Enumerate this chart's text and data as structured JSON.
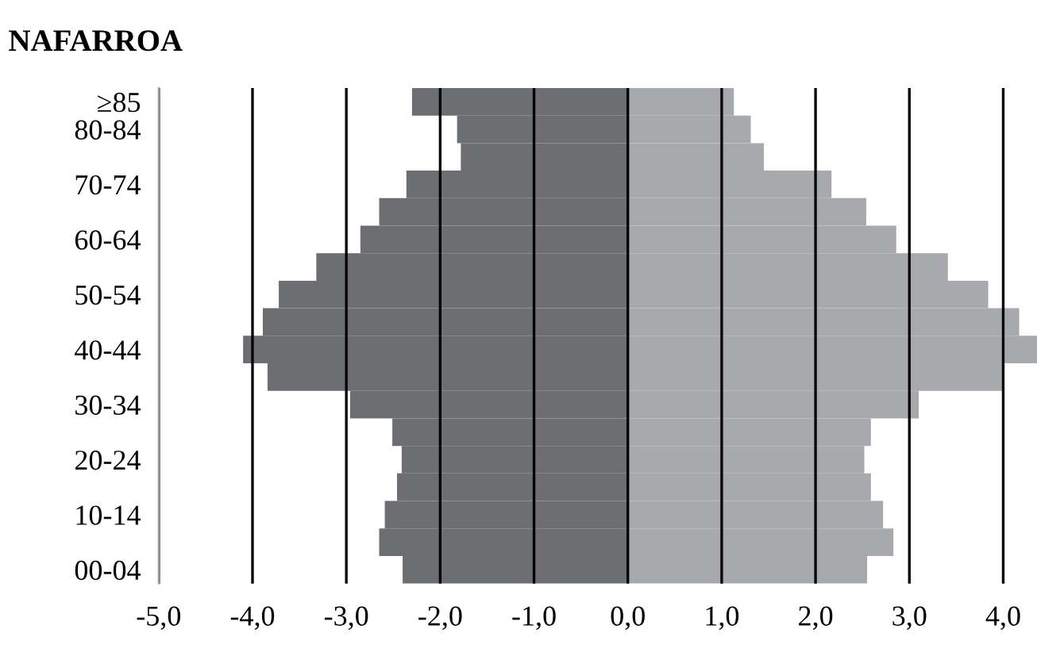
{
  "chart_data": {
    "type": "bar",
    "orientation": "horizontal",
    "stacked": true,
    "title": "NAFARROA",
    "categories": [
      "≥85",
      "80-84",
      null,
      "70-74",
      null,
      "60-64",
      null,
      "50-54",
      null,
      "40-44",
      null,
      "30-34",
      null,
      "20-24",
      null,
      "10-14",
      null,
      "00-04"
    ],
    "series": [
      {
        "color": "#6d6e71",
        "values": [
          -2.3,
          -1.82,
          -1.78,
          -2.36,
          -2.65,
          -2.85,
          -3.32,
          -3.72,
          -3.89,
          -4.1,
          -3.84,
          -2.96,
          -2.51,
          -2.41,
          -2.46,
          -2.59,
          -2.65,
          -2.4
        ]
      },
      {
        "color": "#a7a9ac",
        "values": [
          1.13,
          1.31,
          1.45,
          2.17,
          2.54,
          2.86,
          3.41,
          3.84,
          4.17,
          4.36,
          4.0,
          3.1,
          2.59,
          2.52,
          2.59,
          2.72,
          2.83,
          2.55
        ]
      }
    ],
    "xlim": [
      -5,
      4.36
    ],
    "xticks": [
      {
        "value": -5,
        "label": "-5,0"
      },
      {
        "value": -4,
        "label": "-4,0"
      },
      {
        "value": -3,
        "label": "-3,0"
      },
      {
        "value": -2,
        "label": "-2,0"
      },
      {
        "value": -1,
        "label": "-1,0"
      },
      {
        "value": 0,
        "label": "0,0"
      },
      {
        "value": 1,
        "label": "1,0"
      },
      {
        "value": 2,
        "label": "2,0"
      },
      {
        "value": 3,
        "label": "3,0"
      },
      {
        "value": 4,
        "label": "4,0"
      }
    ],
    "grid": "x",
    "legend": false
  }
}
